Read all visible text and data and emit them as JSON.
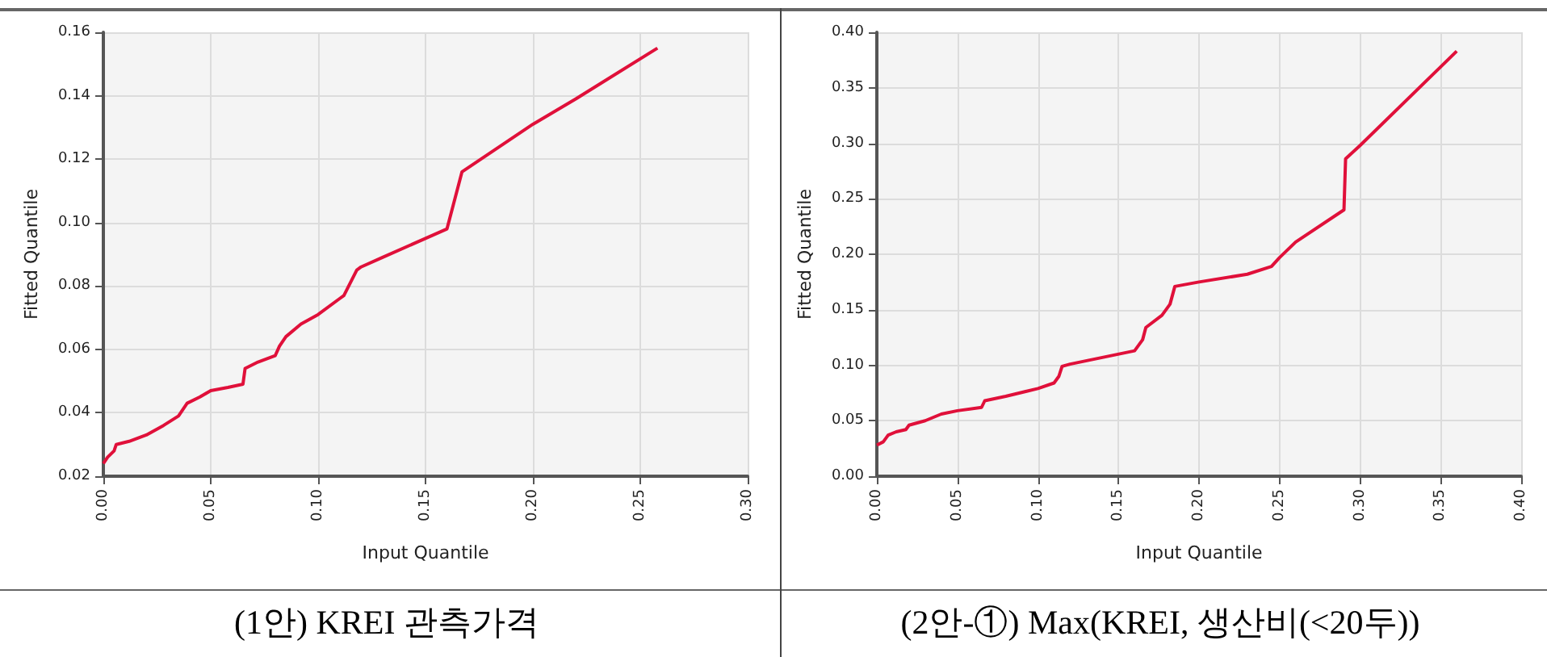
{
  "chart_data": [
    {
      "type": "line",
      "title": "(1안) KREI 관측가격",
      "xlabel": "Input Quantile",
      "ylabel": "Fitted Quantile",
      "grid": true,
      "marker": "none",
      "line_style": "solid",
      "xlim": [
        0,
        0.3
      ],
      "ylim": [
        0.02,
        0.16
      ],
      "xticks": [
        {
          "value": 0,
          "label": "0.00"
        },
        {
          "value": 0.05,
          "label": "0.05"
        },
        {
          "value": 0.1,
          "label": "0.10"
        },
        {
          "value": 0.15,
          "label": "0.15"
        },
        {
          "value": 0.2,
          "label": "0.20"
        },
        {
          "value": 0.25,
          "label": "0.25"
        },
        {
          "value": 0.3,
          "label": "0.30"
        }
      ],
      "yticks": [
        {
          "value": 0.02,
          "label": "0.02"
        },
        {
          "value": 0.04,
          "label": "0.04"
        },
        {
          "value": 0.06,
          "label": "0.06"
        },
        {
          "value": 0.08,
          "label": "0.08"
        },
        {
          "value": 0.1,
          "label": "0.10"
        },
        {
          "value": 0.12,
          "label": "0.12"
        },
        {
          "value": 0.14,
          "label": "0.14"
        },
        {
          "value": 0.16,
          "label": "0.16"
        }
      ],
      "series": [
        {
          "color": "#e0103a",
          "x": [
            0,
            0.002,
            0.005,
            0.006,
            0.012,
            0.02,
            0.028,
            0.035,
            0.039,
            0.045,
            0.05,
            0.058,
            0.065,
            0.066,
            0.072,
            0.08,
            0.082,
            0.085,
            0.092,
            0.1,
            0.11,
            0.112,
            0.118,
            0.12,
            0.13,
            0.15,
            0.16,
            0.167,
            0.2,
            0.22,
            0.258
          ],
          "values": [
            0.024,
            0.026,
            0.028,
            0.03,
            0.031,
            0.033,
            0.036,
            0.039,
            0.043,
            0.045,
            0.047,
            0.048,
            0.049,
            0.054,
            0.056,
            0.058,
            0.061,
            0.064,
            0.068,
            0.071,
            0.076,
            0.077,
            0.085,
            0.086,
            0.089,
            0.095,
            0.098,
            0.116,
            0.131,
            0.139,
            0.155
          ]
        }
      ]
    },
    {
      "type": "line",
      "title": "(2안-①) Max(KREI, 생산비(<20두))",
      "xlabel": "Input Quantile",
      "ylabel": "Fitted Quantile",
      "grid": true,
      "marker": "none",
      "line_style": "solid",
      "xlim": [
        0,
        0.4
      ],
      "ylim": [
        0,
        0.4
      ],
      "xticks": [
        {
          "value": 0,
          "label": "0.00"
        },
        {
          "value": 0.05,
          "label": "0.05"
        },
        {
          "value": 0.1,
          "label": "0.10"
        },
        {
          "value": 0.15,
          "label": "0.15"
        },
        {
          "value": 0.2,
          "label": "0.20"
        },
        {
          "value": 0.25,
          "label": "0.25"
        },
        {
          "value": 0.3,
          "label": "0.30"
        },
        {
          "value": 0.35,
          "label": "0.35"
        },
        {
          "value": 0.4,
          "label": "0.40"
        }
      ],
      "yticks": [
        {
          "value": 0,
          "label": "0.00"
        },
        {
          "value": 0.05,
          "label": "0.05"
        },
        {
          "value": 0.1,
          "label": "0.10"
        },
        {
          "value": 0.15,
          "label": "0.15"
        },
        {
          "value": 0.2,
          "label": "0.20"
        },
        {
          "value": 0.25,
          "label": "0.25"
        },
        {
          "value": 0.3,
          "label": "0.30"
        },
        {
          "value": 0.35,
          "label": "0.35"
        },
        {
          "value": 0.4,
          "label": "0.40"
        }
      ],
      "series": [
        {
          "color": "#e0103a",
          "x": [
            0,
            0.004,
            0.007,
            0.012,
            0.018,
            0.02,
            0.03,
            0.04,
            0.05,
            0.065,
            0.067,
            0.08,
            0.1,
            0.11,
            0.113,
            0.115,
            0.12,
            0.14,
            0.16,
            0.165,
            0.167,
            0.177,
            0.182,
            0.185,
            0.2,
            0.23,
            0.245,
            0.25,
            0.26,
            0.29,
            0.291,
            0.3,
            0.36
          ],
          "values": [
            0.028,
            0.031,
            0.037,
            0.04,
            0.042,
            0.046,
            0.05,
            0.056,
            0.059,
            0.062,
            0.068,
            0.072,
            0.079,
            0.084,
            0.09,
            0.099,
            0.101,
            0.107,
            0.113,
            0.123,
            0.134,
            0.145,
            0.155,
            0.171,
            0.175,
            0.182,
            0.189,
            0.197,
            0.211,
            0.24,
            0.286,
            0.298,
            0.383
          ]
        }
      ]
    }
  ]
}
